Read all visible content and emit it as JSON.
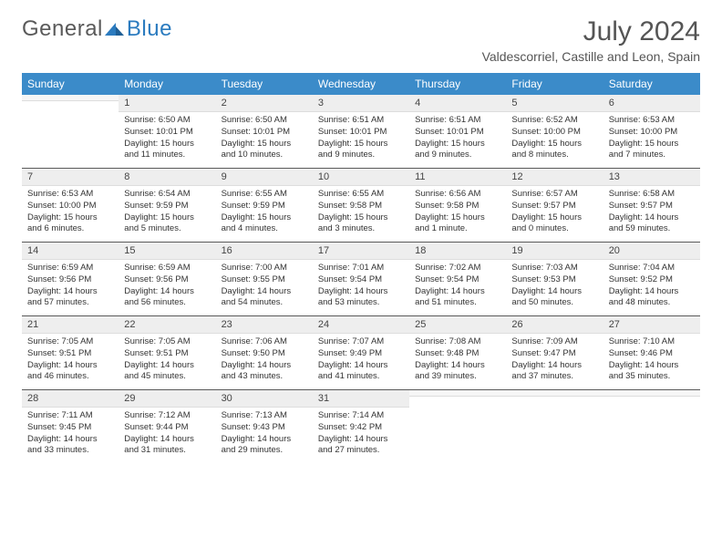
{
  "logo": {
    "general": "General",
    "blue": "Blue"
  },
  "title": "July 2024",
  "location": "Valdescorriel, Castille and Leon, Spain",
  "colors": {
    "header_bg": "#3b8bc9",
    "header_text": "#ffffff",
    "daynum_bg": "#eeeeee",
    "rule": "#5a5a5a",
    "logo_blue": "#2b7bbf",
    "text": "#333333"
  },
  "day_headers": [
    "Sunday",
    "Monday",
    "Tuesday",
    "Wednesday",
    "Thursday",
    "Friday",
    "Saturday"
  ],
  "weeks": [
    [
      {
        "n": "",
        "t": ""
      },
      {
        "n": "1",
        "t": "Sunrise: 6:50 AM\nSunset: 10:01 PM\nDaylight: 15 hours and 11 minutes."
      },
      {
        "n": "2",
        "t": "Sunrise: 6:50 AM\nSunset: 10:01 PM\nDaylight: 15 hours and 10 minutes."
      },
      {
        "n": "3",
        "t": "Sunrise: 6:51 AM\nSunset: 10:01 PM\nDaylight: 15 hours and 9 minutes."
      },
      {
        "n": "4",
        "t": "Sunrise: 6:51 AM\nSunset: 10:01 PM\nDaylight: 15 hours and 9 minutes."
      },
      {
        "n": "5",
        "t": "Sunrise: 6:52 AM\nSunset: 10:00 PM\nDaylight: 15 hours and 8 minutes."
      },
      {
        "n": "6",
        "t": "Sunrise: 6:53 AM\nSunset: 10:00 PM\nDaylight: 15 hours and 7 minutes."
      }
    ],
    [
      {
        "n": "7",
        "t": "Sunrise: 6:53 AM\nSunset: 10:00 PM\nDaylight: 15 hours and 6 minutes."
      },
      {
        "n": "8",
        "t": "Sunrise: 6:54 AM\nSunset: 9:59 PM\nDaylight: 15 hours and 5 minutes."
      },
      {
        "n": "9",
        "t": "Sunrise: 6:55 AM\nSunset: 9:59 PM\nDaylight: 15 hours and 4 minutes."
      },
      {
        "n": "10",
        "t": "Sunrise: 6:55 AM\nSunset: 9:58 PM\nDaylight: 15 hours and 3 minutes."
      },
      {
        "n": "11",
        "t": "Sunrise: 6:56 AM\nSunset: 9:58 PM\nDaylight: 15 hours and 1 minute."
      },
      {
        "n": "12",
        "t": "Sunrise: 6:57 AM\nSunset: 9:57 PM\nDaylight: 15 hours and 0 minutes."
      },
      {
        "n": "13",
        "t": "Sunrise: 6:58 AM\nSunset: 9:57 PM\nDaylight: 14 hours and 59 minutes."
      }
    ],
    [
      {
        "n": "14",
        "t": "Sunrise: 6:59 AM\nSunset: 9:56 PM\nDaylight: 14 hours and 57 minutes."
      },
      {
        "n": "15",
        "t": "Sunrise: 6:59 AM\nSunset: 9:56 PM\nDaylight: 14 hours and 56 minutes."
      },
      {
        "n": "16",
        "t": "Sunrise: 7:00 AM\nSunset: 9:55 PM\nDaylight: 14 hours and 54 minutes."
      },
      {
        "n": "17",
        "t": "Sunrise: 7:01 AM\nSunset: 9:54 PM\nDaylight: 14 hours and 53 minutes."
      },
      {
        "n": "18",
        "t": "Sunrise: 7:02 AM\nSunset: 9:54 PM\nDaylight: 14 hours and 51 minutes."
      },
      {
        "n": "19",
        "t": "Sunrise: 7:03 AM\nSunset: 9:53 PM\nDaylight: 14 hours and 50 minutes."
      },
      {
        "n": "20",
        "t": "Sunrise: 7:04 AM\nSunset: 9:52 PM\nDaylight: 14 hours and 48 minutes."
      }
    ],
    [
      {
        "n": "21",
        "t": "Sunrise: 7:05 AM\nSunset: 9:51 PM\nDaylight: 14 hours and 46 minutes."
      },
      {
        "n": "22",
        "t": "Sunrise: 7:05 AM\nSunset: 9:51 PM\nDaylight: 14 hours and 45 minutes."
      },
      {
        "n": "23",
        "t": "Sunrise: 7:06 AM\nSunset: 9:50 PM\nDaylight: 14 hours and 43 minutes."
      },
      {
        "n": "24",
        "t": "Sunrise: 7:07 AM\nSunset: 9:49 PM\nDaylight: 14 hours and 41 minutes."
      },
      {
        "n": "25",
        "t": "Sunrise: 7:08 AM\nSunset: 9:48 PM\nDaylight: 14 hours and 39 minutes."
      },
      {
        "n": "26",
        "t": "Sunrise: 7:09 AM\nSunset: 9:47 PM\nDaylight: 14 hours and 37 minutes."
      },
      {
        "n": "27",
        "t": "Sunrise: 7:10 AM\nSunset: 9:46 PM\nDaylight: 14 hours and 35 minutes."
      }
    ],
    [
      {
        "n": "28",
        "t": "Sunrise: 7:11 AM\nSunset: 9:45 PM\nDaylight: 14 hours and 33 minutes."
      },
      {
        "n": "29",
        "t": "Sunrise: 7:12 AM\nSunset: 9:44 PM\nDaylight: 14 hours and 31 minutes."
      },
      {
        "n": "30",
        "t": "Sunrise: 7:13 AM\nSunset: 9:43 PM\nDaylight: 14 hours and 29 minutes."
      },
      {
        "n": "31",
        "t": "Sunrise: 7:14 AM\nSunset: 9:42 PM\nDaylight: 14 hours and 27 minutes."
      },
      {
        "n": "",
        "t": ""
      },
      {
        "n": "",
        "t": ""
      },
      {
        "n": "",
        "t": ""
      }
    ]
  ]
}
